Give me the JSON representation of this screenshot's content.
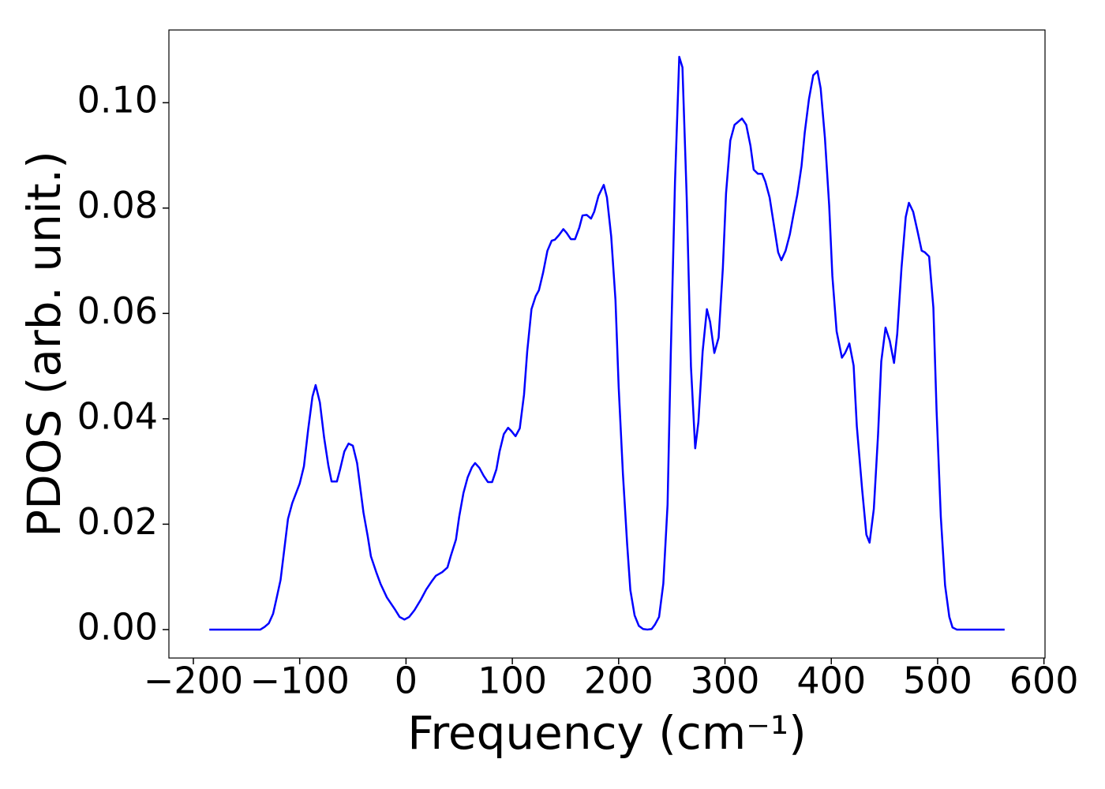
{
  "chart_data": {
    "type": "line",
    "xlabel": "Frequency (cm⁻¹)",
    "ylabel": "PDOS (arb. unit.)",
    "x": [
      -185,
      -175,
      -165,
      -155,
      -145,
      -137,
      -133,
      -129,
      -125,
      -122,
      -118,
      -111,
      -107,
      -100,
      -96,
      -92,
      -88,
      -85,
      -81,
      -77,
      -73,
      -70,
      -65,
      -62,
      -58,
      -54,
      -50,
      -46,
      -40,
      -36,
      -33,
      -28,
      -24,
      -18,
      -10,
      -6,
      -1.5,
      3,
      8,
      14,
      19,
      24,
      28,
      34,
      39,
      42,
      47,
      50,
      54,
      58,
      62,
      65,
      69,
      73,
      77,
      81,
      85,
      88,
      92,
      96,
      99,
      103,
      107,
      111,
      114,
      118,
      122,
      125,
      129,
      133,
      137,
      140,
      144,
      148,
      151,
      155,
      159,
      163,
      166,
      170,
      174,
      177,
      181,
      186,
      189,
      193,
      197,
      200,
      204,
      208,
      211,
      215,
      219,
      223,
      227,
      231,
      234,
      238,
      242,
      246,
      249,
      253,
      257,
      260,
      264,
      268,
      272,
      275,
      279,
      283,
      286,
      290,
      294,
      298,
      301,
      305,
      309,
      312,
      316,
      320,
      324,
      327,
      331,
      335,
      338,
      342,
      346,
      350,
      353,
      357,
      361,
      364,
      368,
      372,
      375,
      379,
      383,
      387,
      390,
      394,
      398,
      401,
      405,
      410,
      413,
      417,
      421,
      424,
      429,
      433,
      436,
      440,
      444,
      447,
      451,
      455,
      459,
      462,
      466,
      470,
      473,
      477,
      481,
      485,
      488,
      492,
      496,
      499,
      503,
      507,
      511,
      514,
      518,
      525,
      535,
      545,
      555,
      563
    ],
    "series": [
      {
        "name": "PDOS",
        "color": "#0000ff",
        "values": [
          0,
          0,
          0,
          0,
          0,
          0,
          0.0005,
          0.0012,
          0.003,
          0.0057,
          0.0094,
          0.021,
          0.024,
          0.0277,
          0.031,
          0.038,
          0.0442,
          0.0464,
          0.0431,
          0.0364,
          0.0311,
          0.0281,
          0.0281,
          0.0304,
          0.0338,
          0.0353,
          0.0349,
          0.0316,
          0.0222,
          0.0177,
          0.0139,
          0.0109,
          0.0087,
          0.0061,
          0.0037,
          0.0024,
          0.0019,
          0.0024,
          0.0037,
          0.0057,
          0.0076,
          0.0091,
          0.0102,
          0.0109,
          0.0118,
          0.0139,
          0.0171,
          0.0214,
          0.0259,
          0.0289,
          0.0308,
          0.0316,
          0.0307,
          0.0292,
          0.028,
          0.028,
          0.0304,
          0.0338,
          0.0371,
          0.0383,
          0.0377,
          0.0367,
          0.0382,
          0.0446,
          0.0528,
          0.0608,
          0.0633,
          0.0644,
          0.0678,
          0.0719,
          0.0738,
          0.074,
          0.0749,
          0.076,
          0.0753,
          0.0741,
          0.0741,
          0.0763,
          0.0786,
          0.0787,
          0.078,
          0.0793,
          0.0823,
          0.0844,
          0.082,
          0.0746,
          0.0626,
          0.0461,
          0.0296,
          0.0162,
          0.0075,
          0.0027,
          0.0007,
          0.0001,
          0,
          0.0001,
          0.0009,
          0.0024,
          0.0087,
          0.0237,
          0.0521,
          0.085,
          0.1087,
          0.1067,
          0.082,
          0.0499,
          0.0344,
          0.0394,
          0.0528,
          0.0608,
          0.0584,
          0.0525,
          0.0554,
          0.0686,
          0.0828,
          0.0928,
          0.0958,
          0.0963,
          0.097,
          0.0958,
          0.0918,
          0.0873,
          0.0865,
          0.0865,
          0.085,
          0.082,
          0.0768,
          0.0716,
          0.0701,
          0.0719,
          0.075,
          0.0783,
          0.0825,
          0.088,
          0.0943,
          0.1007,
          0.1052,
          0.106,
          0.1027,
          0.0933,
          0.0805,
          0.0671,
          0.0566,
          0.0516,
          0.0525,
          0.0543,
          0.0501,
          0.0386,
          0.0266,
          0.018,
          0.0165,
          0.0229,
          0.0371,
          0.0509,
          0.0573,
          0.0548,
          0.0506,
          0.0561,
          0.0686,
          0.0783,
          0.081,
          0.0793,
          0.0757,
          0.0719,
          0.0716,
          0.0708,
          0.0611,
          0.0416,
          0.0214,
          0.0084,
          0.0024,
          0.0004,
          0,
          0,
          0,
          0,
          0,
          0
        ]
      }
    ],
    "xlim": [
      -223,
      601
    ],
    "ylim": [
      -0.0054,
      0.1138
    ],
    "xticks": [
      {
        "value": -200,
        "label": "−200"
      },
      {
        "value": -100,
        "label": "−100"
      },
      0,
      100,
      200,
      300,
      400,
      500,
      600
    ],
    "yticks": [
      {
        "value": 0,
        "label": "0.00"
      },
      {
        "value": 0.02,
        "label": "0.02"
      },
      {
        "value": 0.04,
        "label": "0.04"
      },
      {
        "value": 0.06,
        "label": "0.06"
      },
      {
        "value": 0.08,
        "label": "0.08"
      },
      {
        "value": 0.1,
        "label": "0.10"
      }
    ],
    "grid": false
  }
}
